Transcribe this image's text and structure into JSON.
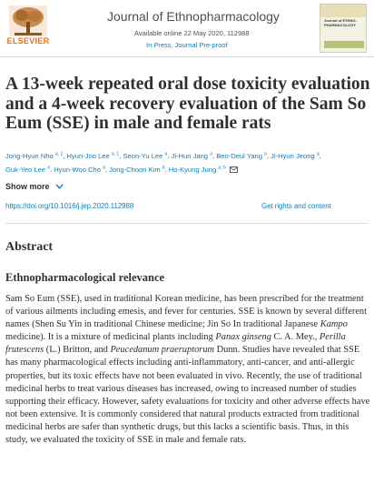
{
  "publisher": {
    "name": "ELSEVIER"
  },
  "journal": {
    "title": "Journal of Ethnopharmacology",
    "available": "Available online 22 May 2020, 112988",
    "status": "In Press, Journal Pre-proof",
    "cover_title": "Journal of ETHNO-PHARMACOLOGY"
  },
  "article": {
    "title": "A 13-week repeated oral dose toxicity evaluation and a 4-week recovery evaluation of the Sam So Eum (SSE) in male and female rats",
    "authors": [
      {
        "name": "Jong-Hyun Nho",
        "sup": "a, 1"
      },
      {
        "name": "Hyun-Joo Lee",
        "sup": "a, 1"
      },
      {
        "name": "Seon-Yu Lee",
        "sup": "a"
      },
      {
        "name": "Ji-Hun Jang",
        "sup": "a"
      },
      {
        "name": "Beo-Deul Yang",
        "sup": "a"
      },
      {
        "name": "Ji-Hyun Jeong",
        "sup": "a"
      },
      {
        "name": "Guk-Yeo Lee",
        "sup": "a"
      },
      {
        "name": "Hyun-Woo Cho",
        "sup": "a"
      },
      {
        "name": "Jong-Choon Kim",
        "sup": "b"
      },
      {
        "name": "Ho-Kyung Jung",
        "sup": "a, b"
      }
    ],
    "show_more": "Show more",
    "doi": "https://doi.org/10.1016/j.jep.2020.112988",
    "rights": "Get rights and content"
  },
  "abstract": {
    "heading": "Abstract",
    "subheading": "Ethnopharmacological relevance",
    "body": {
      "p1": "Sam So Eum (SSE), used in traditional Korean medicine, has been prescribed for the treatment of various ailments including emesis, and fever for centuries. SSE is known by several different names (Shen Su Yin in traditional Chinese medicine; Jin So In traditional Japanese ",
      "kampo": "Kampo",
      "p2": " medicine). It is a mixture of medicinal plants including ",
      "panax": "Panax ginseng",
      "p3": " C. A. Mey., ",
      "perilla": "Perilla frutescens",
      "p4": " (L.) Britton, and ",
      "peucedanum": "Peucedanum praeruptorum",
      "p5": " Dunn. Studies have revealed that SSE has many pharmacological effects including anti-inflammatory, anti-cancer, and anti-allergic properties, but its toxic effects have not been evaluated in vivo. Recently, the use of traditional medicinal herbs to treat various diseases has increased, owing to increased number of studies supporting their efficacy. However, safety evaluations for toxicity and other adverse effects have not been extensive. It is commonly considered that natural products extracted from traditional medicinal herbs are safer than synthetic drugs, but this lacks a scientific basis. Thus, in this study, we evaluated the toxicity of SSE in male and female rats."
    }
  },
  "colors": {
    "link": "#0c7dbb",
    "brand": "#e9711c",
    "text": "#2e2e2e"
  },
  "icons": [
    "elsevier-tree-logo",
    "mail-icon",
    "chevron-down-icon"
  ]
}
